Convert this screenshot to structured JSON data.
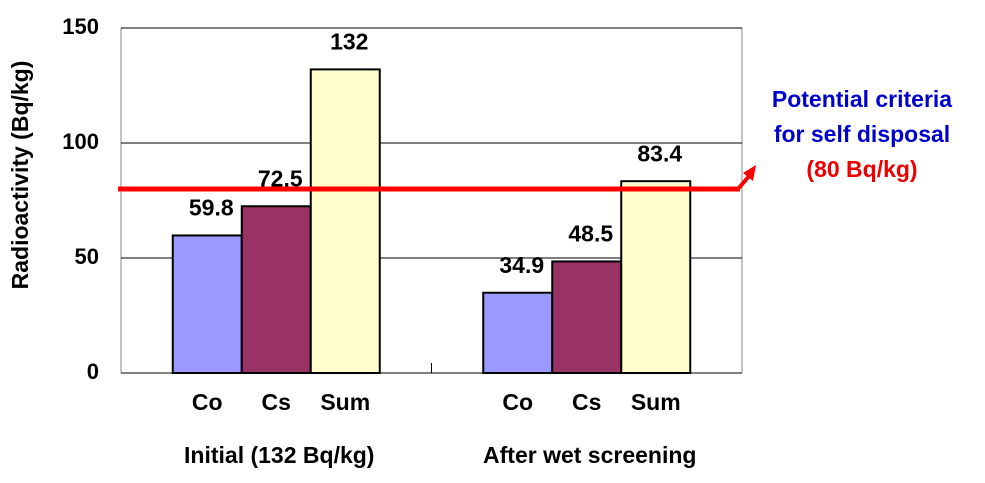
{
  "chart_data": {
    "type": "bar",
    "y_label": "Radioactivity (Bq/kg)",
    "categories": [
      "Initial (132 Bq/kg)",
      "After wet screening"
    ],
    "series": [
      {
        "name": "Co",
        "color": "#9999ff",
        "values": [
          59.8,
          34.9
        ]
      },
      {
        "name": "Cs",
        "color": "#993366",
        "values": [
          72.5,
          48.5
        ]
      },
      {
        "name": "Sum",
        "color": "#ffffcc",
        "values": [
          132,
          83.4
        ]
      }
    ],
    "ylim": [
      0,
      150
    ],
    "yticks": [
      0,
      50,
      100,
      150
    ],
    "grid": true,
    "reference": {
      "value": 80,
      "color": "#ff0000",
      "annotation": [
        "Potential criteria",
        "for self disposal",
        "(80 Bq/kg)"
      ],
      "annotation_colors": [
        "#0000cc",
        "#0000cc",
        "#ee0000"
      ]
    }
  }
}
